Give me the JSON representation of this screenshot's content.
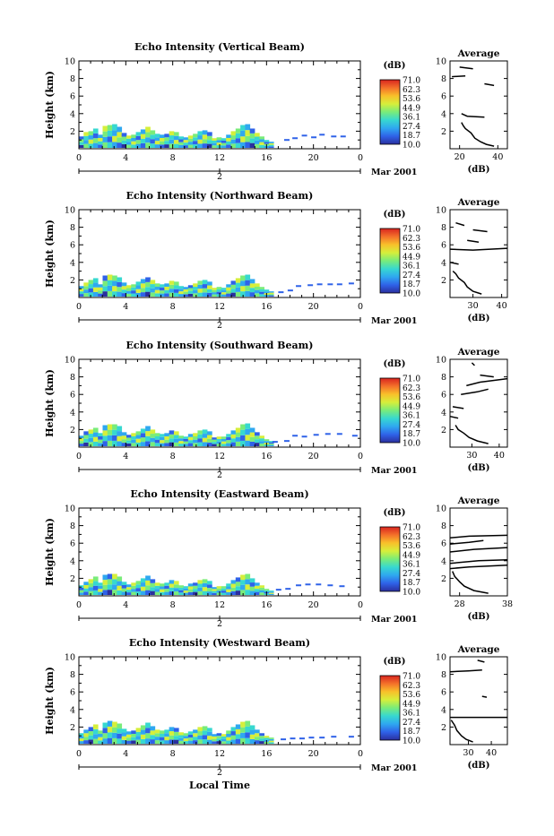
{
  "date_label": "Mar 2001",
  "day_label": "2",
  "xlabel": "Local Time",
  "colorbar": {
    "unit": "(dB)",
    "ticks": [
      "71.0",
      "62.3",
      "53.6",
      "44.9",
      "36.1",
      "27.4",
      "18.7",
      "10.0"
    ],
    "colors": [
      "#2b2f9e",
      "#2f62e8",
      "#2fa8f0",
      "#37d8d0",
      "#79ec7a",
      "#d6ef3b",
      "#f8c02a",
      "#f4712a",
      "#d9241f"
    ]
  },
  "chart_data": [
    {
      "type": "heatmap",
      "title": "Echo Intensity (Vertical Beam)",
      "ylabel": "Height (km)",
      "xticks": [
        "0",
        "4",
        "8",
        "12",
        "16",
        "20",
        "0"
      ],
      "yticks": [
        "2",
        "4",
        "6",
        "8",
        "10"
      ],
      "xlim": [
        0,
        24
      ],
      "ylim": [
        0,
        10
      ],
      "cloud_top_km": [
        1.4,
        1.9,
        2.0,
        2.3,
        1.6,
        2.6,
        2.7,
        2.8,
        2.5,
        1.8,
        1.5,
        1.6,
        1.9,
        2.2,
        2.5,
        2.1,
        1.7,
        1.6,
        1.7,
        2.0,
        1.9,
        1.4,
        1.3,
        1.5,
        1.7,
        2.0,
        2.1,
        1.9,
        1.2,
        1.3,
        1.2,
        1.6,
        2.0,
        2.3,
        2.7,
        2.8,
        2.3,
        1.8,
        1.4,
        1.0,
        0.8
      ],
      "sparse_echo": [
        [
          17.5,
          1.0
        ],
        [
          18.2,
          1.2
        ],
        [
          19.0,
          1.5
        ],
        [
          19.8,
          1.3
        ],
        [
          20.5,
          1.6
        ],
        [
          21.5,
          1.4
        ],
        [
          22.3,
          1.4
        ]
      ],
      "average": {
        "title": "Average",
        "xlabel": "(dB)",
        "xticks": [
          "20",
          "40"
        ],
        "xlim": [
          15,
          45
        ],
        "yticks": [
          "2",
          "4",
          "6",
          "8",
          "10"
        ],
        "profile": [
          [
            38,
            0.3
          ],
          [
            34,
            0.5
          ],
          [
            31,
            0.8
          ],
          [
            28,
            1.2
          ],
          [
            26,
            1.8
          ],
          [
            23,
            2.3
          ],
          [
            22,
            2.6
          ],
          [
            21,
            3.0
          ]
        ],
        "segments": [
          [
            [
              21,
              4.0
            ],
            [
              24,
              3.7
            ],
            [
              33,
              3.6
            ]
          ],
          [
            [
              33,
              7.4
            ],
            [
              38,
              7.2
            ]
          ],
          [
            [
              16,
              8.2
            ],
            [
              23,
              8.3
            ]
          ],
          [
            [
              20,
              9.3
            ],
            [
              27,
              9.1
            ]
          ]
        ]
      }
    },
    {
      "type": "heatmap",
      "title": "Echo Intensity (Northward Beam)",
      "ylabel": "Height (km)",
      "xticks": [
        "0",
        "4",
        "8",
        "12",
        "16",
        "20",
        "0"
      ],
      "yticks": [
        "2",
        "4",
        "6",
        "8",
        "10"
      ],
      "xlim": [
        0,
        24
      ],
      "ylim": [
        0,
        10
      ],
      "cloud_top_km": [
        1.3,
        1.7,
        2.0,
        2.2,
        1.5,
        2.5,
        2.6,
        2.5,
        2.3,
        1.7,
        1.4,
        1.5,
        1.8,
        2.1,
        2.3,
        2.0,
        1.6,
        1.5,
        1.6,
        1.9,
        1.8,
        1.3,
        1.2,
        1.4,
        1.6,
        1.9,
        2.0,
        1.8,
        1.1,
        1.2,
        1.1,
        1.5,
        1.9,
        2.2,
        2.5,
        2.6,
        2.1,
        1.6,
        1.2,
        0.9,
        0.7
      ],
      "sparse_echo": [
        [
          17.0,
          0.6
        ],
        [
          17.8,
          0.8
        ],
        [
          18.5,
          1.3
        ],
        [
          19.5,
          1.4
        ],
        [
          20.3,
          1.5
        ],
        [
          21.2,
          1.5
        ],
        [
          22.0,
          1.5
        ],
        [
          23.0,
          1.6
        ]
      ],
      "average": {
        "title": "Average",
        "xlabel": "(dB)",
        "xticks": [
          "30",
          "40"
        ],
        "xlim": [
          22,
          42
        ],
        "yticks": [
          "2",
          "4",
          "6",
          "8",
          "10"
        ],
        "profile": [
          [
            33,
            0.4
          ],
          [
            30,
            0.7
          ],
          [
            28,
            1.2
          ],
          [
            27,
            1.7
          ],
          [
            25,
            2.2
          ],
          [
            24,
            2.7
          ],
          [
            23,
            3.0
          ]
        ],
        "segments": [
          [
            [
              22,
              4.0
            ],
            [
              25,
              3.8
            ]
          ],
          [
            [
              22,
              5.5
            ],
            [
              30,
              5.4
            ],
            [
              42,
              5.6
            ]
          ],
          [
            [
              28,
              6.5
            ],
            [
              32,
              6.3
            ]
          ],
          [
            [
              30,
              7.7
            ],
            [
              35,
              7.5
            ]
          ],
          [
            [
              24,
              8.5
            ],
            [
              27,
              8.2
            ]
          ]
        ]
      }
    },
    {
      "type": "heatmap",
      "title": "Echo Intensity (Southward Beam)",
      "ylabel": "Height (km)",
      "xticks": [
        "0",
        "4",
        "8",
        "12",
        "16",
        "20",
        "0"
      ],
      "yticks": [
        "2",
        "4",
        "6",
        "8",
        "10"
      ],
      "xlim": [
        0,
        24
      ],
      "ylim": [
        0,
        10
      ],
      "cloud_top_km": [
        1.3,
        1.8,
        2.0,
        2.2,
        1.6,
        2.5,
        2.6,
        2.6,
        2.4,
        1.7,
        1.4,
        1.6,
        1.8,
        2.1,
        2.4,
        2.0,
        1.6,
        1.5,
        1.6,
        1.9,
        1.8,
        1.3,
        1.2,
        1.5,
        1.6,
        1.9,
        2.0,
        1.8,
        1.1,
        1.2,
        1.2,
        1.5,
        1.9,
        2.2,
        2.6,
        2.7,
        2.2,
        1.7,
        1.3,
        0.9,
        0.7
      ],
      "sparse_echo": [
        [
          16.5,
          0.6
        ],
        [
          17.5,
          0.7
        ],
        [
          18.2,
          1.3
        ],
        [
          19.0,
          1.2
        ],
        [
          20.0,
          1.4
        ],
        [
          21.0,
          1.5
        ],
        [
          22.0,
          1.5
        ],
        [
          23.3,
          1.3
        ]
      ],
      "average": {
        "title": "Average",
        "xlabel": "(dB)",
        "xticks": [
          "30",
          "40"
        ],
        "xlim": [
          22,
          43
        ],
        "yticks": [
          "2",
          "4",
          "6",
          "8",
          "10"
        ],
        "profile": [
          [
            36,
            0.4
          ],
          [
            32,
            0.7
          ],
          [
            29,
            1.1
          ],
          [
            27,
            1.6
          ],
          [
            25,
            2.0
          ],
          [
            24,
            2.5
          ]
        ],
        "segments": [
          [
            [
              22,
              3.5
            ],
            [
              25,
              3.3
            ]
          ],
          [
            [
              23,
              4.6
            ],
            [
              27,
              4.4
            ]
          ],
          [
            [
              26,
              6.0
            ],
            [
              32,
              6.3
            ],
            [
              36,
              6.6
            ]
          ],
          [
            [
              28,
              7.0
            ],
            [
              33,
              7.4
            ],
            [
              43,
              7.8
            ]
          ],
          [
            [
              33,
              8.2
            ],
            [
              38,
              8.0
            ]
          ],
          [
            [
              30,
              9.6
            ],
            [
              31,
              9.3
            ]
          ]
        ]
      }
    },
    {
      "type": "heatmap",
      "title": "Echo Intensity (Eastward Beam)",
      "ylabel": "Height (km)",
      "xticks": [
        "0",
        "4",
        "8",
        "12",
        "16",
        "20",
        "0"
      ],
      "yticks": [
        "2",
        "4",
        "6",
        "8",
        "10"
      ],
      "xlim": [
        0,
        24
      ],
      "ylim": [
        0,
        10
      ],
      "cloud_top_km": [
        1.2,
        1.6,
        1.9,
        2.2,
        1.5,
        2.4,
        2.5,
        2.5,
        2.2,
        1.6,
        1.3,
        1.5,
        1.7,
        2.0,
        2.3,
        1.9,
        1.5,
        1.4,
        1.5,
        1.8,
        1.7,
        1.2,
        1.1,
        1.4,
        1.5,
        1.8,
        1.9,
        1.7,
        1.0,
        1.1,
        1.1,
        1.4,
        1.8,
        2.1,
        2.4,
        2.5,
        2.0,
        1.5,
        1.2,
        0.8,
        0.6
      ],
      "sparse_echo": [
        [
          16.8,
          0.7
        ],
        [
          17.6,
          0.8
        ],
        [
          18.5,
          1.2
        ],
        [
          19.3,
          1.3
        ],
        [
          20.2,
          1.3
        ],
        [
          21.2,
          1.2
        ],
        [
          22.2,
          1.1
        ]
      ],
      "average": {
        "title": "Average",
        "xlabel": "(dB)",
        "xticks": [
          "28",
          "38"
        ],
        "xlim": [
          26,
          38
        ],
        "yticks": [
          "2",
          "4",
          "6",
          "8",
          "10"
        ],
        "profile": [
          [
            34,
            0.3
          ],
          [
            31,
            0.6
          ],
          [
            29,
            1.1
          ],
          [
            28,
            1.6
          ],
          [
            27,
            2.2
          ],
          [
            26.5,
            2.8
          ]
        ],
        "segments": [
          [
            [
              26,
              3.1
            ],
            [
              30,
              3.3
            ],
            [
              38,
              3.5
            ]
          ],
          [
            [
              26,
              3.7
            ],
            [
              32,
              4.0
            ],
            [
              38,
              4.1
            ]
          ],
          [
            [
              26,
              5.0
            ],
            [
              31,
              5.3
            ],
            [
              38,
              5.5
            ]
          ],
          [
            [
              26,
              5.9
            ],
            [
              30,
              6.1
            ],
            [
              33,
              6.3
            ]
          ],
          [
            [
              26,
              6.6
            ],
            [
              30,
              6.8
            ],
            [
              38,
              6.9
            ]
          ]
        ]
      }
    },
    {
      "type": "heatmap",
      "title": "Echo Intensity (Westward Beam)",
      "ylabel": "Height (km)",
      "xticks": [
        "0",
        "4",
        "8",
        "12",
        "16",
        "20",
        "0"
      ],
      "yticks": [
        "2",
        "4",
        "6",
        "8",
        "10"
      ],
      "xlim": [
        0,
        24
      ],
      "ylim": [
        0,
        10
      ],
      "cloud_top_km": [
        1.3,
        1.7,
        2.0,
        2.3,
        1.6,
        2.5,
        2.7,
        2.6,
        2.4,
        1.8,
        1.5,
        1.6,
        1.9,
        2.2,
        2.5,
        2.1,
        1.7,
        1.6,
        1.7,
        2.0,
        1.9,
        1.4,
        1.3,
        1.5,
        1.7,
        2.0,
        2.1,
        1.9,
        1.2,
        1.3,
        1.2,
        1.6,
        2.0,
        2.3,
        2.6,
        2.7,
        2.2,
        1.7,
        1.3,
        1.0,
        0.8
      ],
      "sparse_echo": [
        [
          17.2,
          0.6
        ],
        [
          18.0,
          0.7
        ],
        [
          18.8,
          0.7
        ],
        [
          19.6,
          0.8
        ],
        [
          20.5,
          0.8
        ],
        [
          21.5,
          0.9
        ],
        [
          23.0,
          0.9
        ]
      ],
      "average": {
        "title": "Average",
        "xlabel": "(dB)",
        "xticks": [
          "30",
          "40"
        ],
        "xlim": [
          22,
          47
        ],
        "yticks": [
          "2",
          "4",
          "6",
          "8",
          "10"
        ],
        "profile": [
          [
            32,
            0.3
          ],
          [
            29,
            0.6
          ],
          [
            27,
            1.0
          ],
          [
            25,
            1.6
          ],
          [
            24,
            2.2
          ],
          [
            22.5,
            2.8
          ]
        ],
        "segments": [
          [
            [
              22,
              3.1
            ],
            [
              34,
              3.1
            ],
            [
              47,
              3.1
            ]
          ],
          [
            [
              36,
              5.5
            ],
            [
              38,
              5.4
            ]
          ],
          [
            [
              22,
              8.3
            ],
            [
              30,
              8.4
            ],
            [
              36,
              8.5
            ]
          ],
          [
            [
              34,
              9.6
            ],
            [
              37,
              9.4
            ]
          ]
        ]
      }
    }
  ]
}
